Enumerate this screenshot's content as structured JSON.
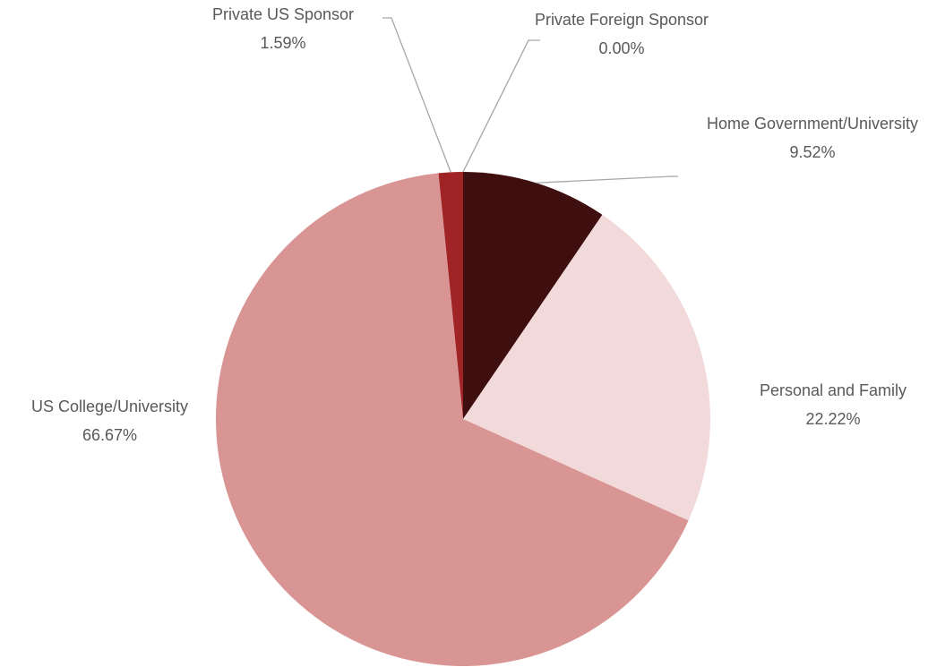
{
  "chart_data": {
    "type": "pie",
    "categories": [
      "Home Government/University",
      "Personal and Family",
      "US College/University",
      "Private US Sponsor",
      "Private Foreign Sponsor"
    ],
    "values": [
      9.52,
      22.22,
      66.67,
      1.59,
      0
    ],
    "value_labels": [
      "9.52%",
      "22.22%",
      "66.67%",
      "1.59%",
      "0.00%"
    ],
    "colors": [
      "#3f0e0f",
      "#f2dada",
      "#d99594",
      "#a02426",
      "#c0504d"
    ]
  }
}
